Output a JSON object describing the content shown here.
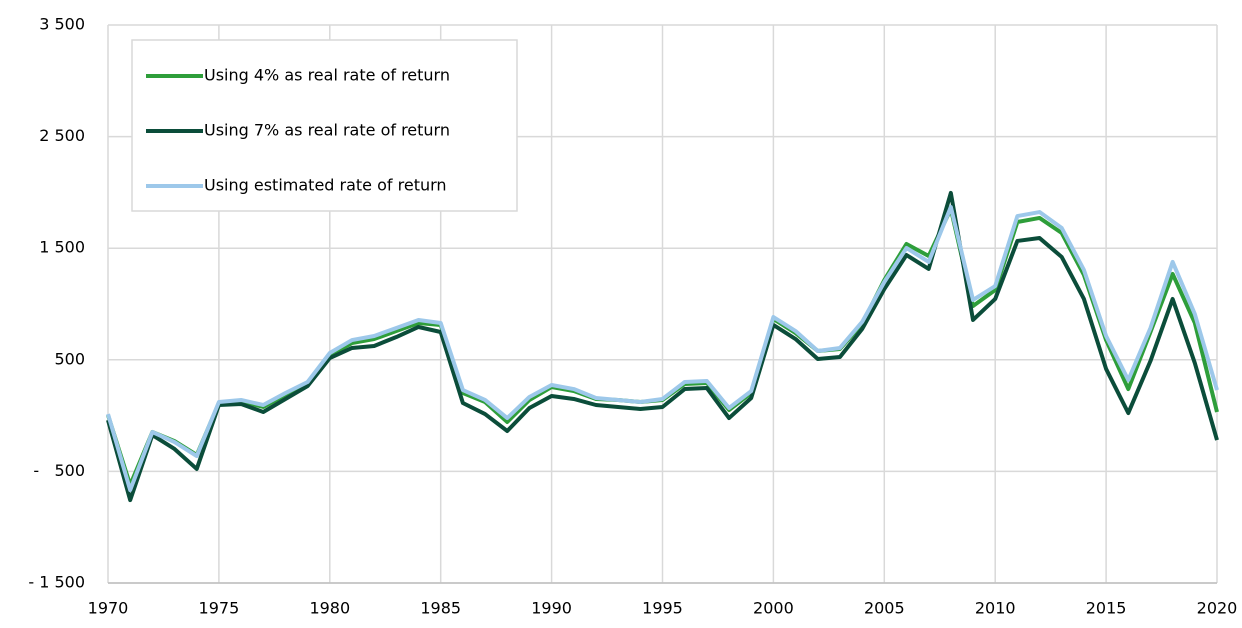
{
  "chart_data": {
    "type": "line",
    "x": [
      1970,
      1971,
      1972,
      1973,
      1974,
      1975,
      1976,
      1977,
      1978,
      1979,
      1980,
      1981,
      1982,
      1983,
      1984,
      1985,
      1986,
      1987,
      1988,
      1989,
      1990,
      1991,
      1992,
      1993,
      1994,
      1995,
      1996,
      1997,
      1998,
      1999,
      2000,
      2001,
      2002,
      2003,
      2004,
      2005,
      2006,
      2007,
      2008,
      2009,
      2010,
      2011,
      2012,
      2013,
      2014,
      2015,
      2016,
      2017,
      2018,
      2019,
      2020
    ],
    "series": [
      {
        "name": "Using 4% as real rate of return",
        "color": "#2e9e3a",
        "values": [
          5,
          -622,
          -147,
          -228,
          -353,
          113,
          131,
          77,
          185,
          283,
          543,
          650,
          686,
          758,
          830,
          812,
          202,
          122,
          -57,
          140,
          256,
          220,
          149,
          140,
          122,
          140,
          283,
          292,
          50,
          202,
          866,
          740,
          579,
          597,
          821,
          1215,
          1538,
          1430,
          1851,
          982,
          1125,
          1735,
          1771,
          1636,
          1260,
          677,
          238,
          749,
          1269,
          830,
          32
        ]
      },
      {
        "name": "Using 7% as real rate of return",
        "color": "#0b4d3a",
        "values": [
          -40,
          -757,
          -174,
          -299,
          -478,
          95,
          104,
          32,
          149,
          265,
          516,
          606,
          624,
          704,
          794,
          749,
          113,
          14,
          -138,
          68,
          176,
          149,
          95,
          77,
          59,
          77,
          238,
          247,
          -22,
          158,
          812,
          686,
          507,
          525,
          776,
          1134,
          1439,
          1314,
          1995,
          857,
          1045,
          1565,
          1591,
          1421,
          1045,
          418,
          23,
          489,
          1045,
          471,
          -219
        ]
      },
      {
        "name": "Using estimated rate of return",
        "color": "#9dc8ea",
        "values": [
          14,
          -667,
          -147,
          -237,
          -362,
          122,
          140,
          95,
          202,
          301,
          561,
          677,
          713,
          785,
          857,
          830,
          229,
          140,
          -22,
          167,
          274,
          238,
          158,
          140,
          122,
          149,
          301,
          310,
          68,
          220,
          883,
          758,
          579,
          606,
          839,
          1197,
          1502,
          1377,
          1869,
          1036,
          1161,
          1788,
          1824,
          1681,
          1305,
          713,
          319,
          785,
          1377,
          910,
          229
        ]
      }
    ],
    "xlim": [
      1970,
      2020
    ],
    "xticks": [
      1970,
      1975,
      1980,
      1985,
      1990,
      1995,
      2000,
      2005,
      2010,
      2015,
      2020
    ],
    "ylim": [
      -1500,
      3500
    ],
    "yticks": [
      {
        "value": -1500,
        "label": "- 1 500"
      },
      {
        "value": -500,
        "label": "-   500"
      },
      {
        "value": 500,
        "label": "500"
      },
      {
        "value": 1500,
        "label": "1 500"
      },
      {
        "value": 2500,
        "label": "2 500"
      },
      {
        "value": 3500,
        "label": "3 500"
      }
    ],
    "grid": true,
    "legend": "upper-left"
  }
}
